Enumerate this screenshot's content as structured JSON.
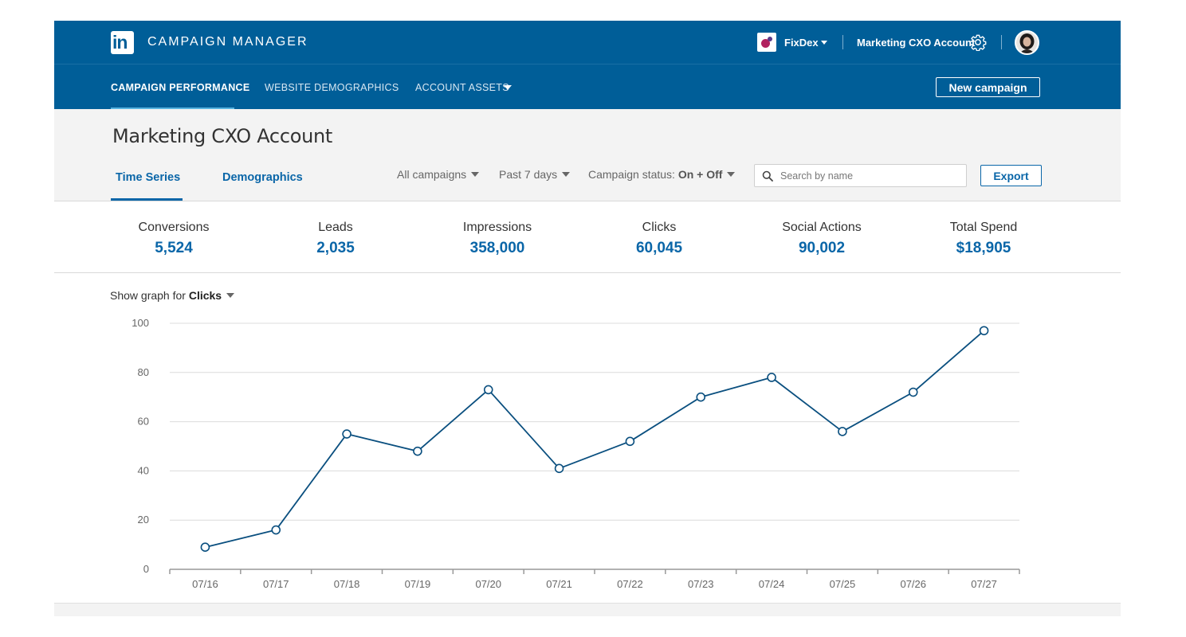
{
  "header": {
    "app_title": "CAMPAIGN MANAGER",
    "org_name": "FixDex",
    "account_name": "Marketing CXO Account",
    "icons": [
      "linkedin-logo-icon",
      "org-logo-icon",
      "chevron-down-icon",
      "gear-icon",
      "avatar"
    ]
  },
  "nav": {
    "items": [
      {
        "label": "CAMPAIGN PERFORMANCE",
        "active": true
      },
      {
        "label": "WEBSITE DEMOGRAPHICS",
        "active": false
      },
      {
        "label": "ACCOUNT ASSETS",
        "active": false
      }
    ],
    "new_campaign_label": "New campaign"
  },
  "page": {
    "title": "Marketing CXO Account",
    "tabs": [
      {
        "label": "Time Series",
        "active": true
      },
      {
        "label": "Demographics",
        "active": false
      }
    ],
    "filters": {
      "campaigns": "All campaigns",
      "date_range": "Past 7 days",
      "status_label": "Campaign status:",
      "status_value": "On + Off"
    },
    "search": {
      "placeholder": "Search by name",
      "value": ""
    },
    "export_label": "Export"
  },
  "metrics": [
    {
      "label": "Conversions",
      "value": "5,524"
    },
    {
      "label": "Leads",
      "value": "2,035"
    },
    {
      "label": "Impressions",
      "value": "358,000"
    },
    {
      "label": "Clicks",
      "value": "60,045"
    },
    {
      "label": "Social Actions",
      "value": "90,002"
    },
    {
      "label": "Total Spend",
      "value": "$18,905"
    }
  ],
  "graph_selector": {
    "prefix": "Show graph for",
    "selected": "Clicks"
  },
  "colors": {
    "header_bg": "#005e98",
    "accent": "#0a66a8",
    "line": "#0a4f7f",
    "nav_active_underline": "#57b4e0"
  },
  "chart_data": {
    "type": "line",
    "title": "",
    "xlabel": "",
    "ylabel": "",
    "categories": [
      "07/16",
      "07/17",
      "07/18",
      "07/19",
      "07/20",
      "07/21",
      "07/22",
      "07/23",
      "07/24",
      "07/25",
      "07/26",
      "07/27"
    ],
    "series": [
      {
        "values": [
          9,
          16,
          55,
          48,
          73,
          41,
          52,
          70,
          78,
          56,
          72,
          97
        ]
      }
    ],
    "ylim": [
      0,
      100
    ],
    "yticks": [
      0,
      20,
      40,
      60,
      80,
      100
    ],
    "grid": true,
    "legend": "none"
  }
}
